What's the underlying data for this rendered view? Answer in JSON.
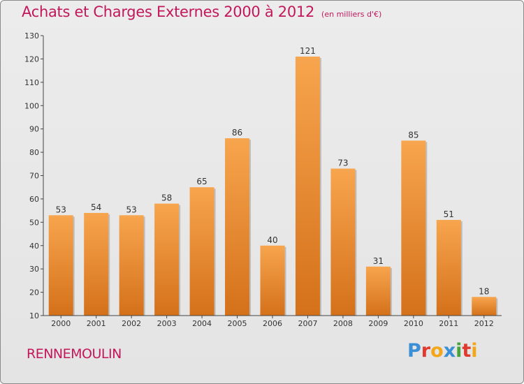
{
  "header": {
    "title": "Achats et Charges Externes 2000 à 2012",
    "subtitle": "(en milliers d'€)"
  },
  "footer": {
    "commune": "RENNEMOULIN",
    "logo": "Proxiti"
  },
  "colors": {
    "title": "#c2185b",
    "bar_light": "#f7a54e",
    "bar_dark": "#d4711a",
    "logo_letters": [
      "#3a8fd6",
      "#e03a2f",
      "#f2a618",
      "#3a8fd6",
      "#49a33b",
      "#e03a2f",
      "#f2a618"
    ]
  },
  "chart_data": {
    "type": "bar",
    "categories": [
      "2000",
      "2001",
      "2002",
      "2003",
      "2004",
      "2005",
      "2006",
      "2007",
      "2008",
      "2009",
      "2010",
      "2011",
      "2012"
    ],
    "values": [
      53,
      54,
      53,
      58,
      65,
      86,
      40,
      121,
      73,
      31,
      85,
      51,
      18
    ],
    "ylim": [
      10,
      130
    ],
    "yticks": [
      10,
      20,
      30,
      40,
      50,
      60,
      70,
      80,
      90,
      100,
      110,
      120,
      130
    ],
    "data_labels": true,
    "grid": false,
    "legend": "none"
  }
}
